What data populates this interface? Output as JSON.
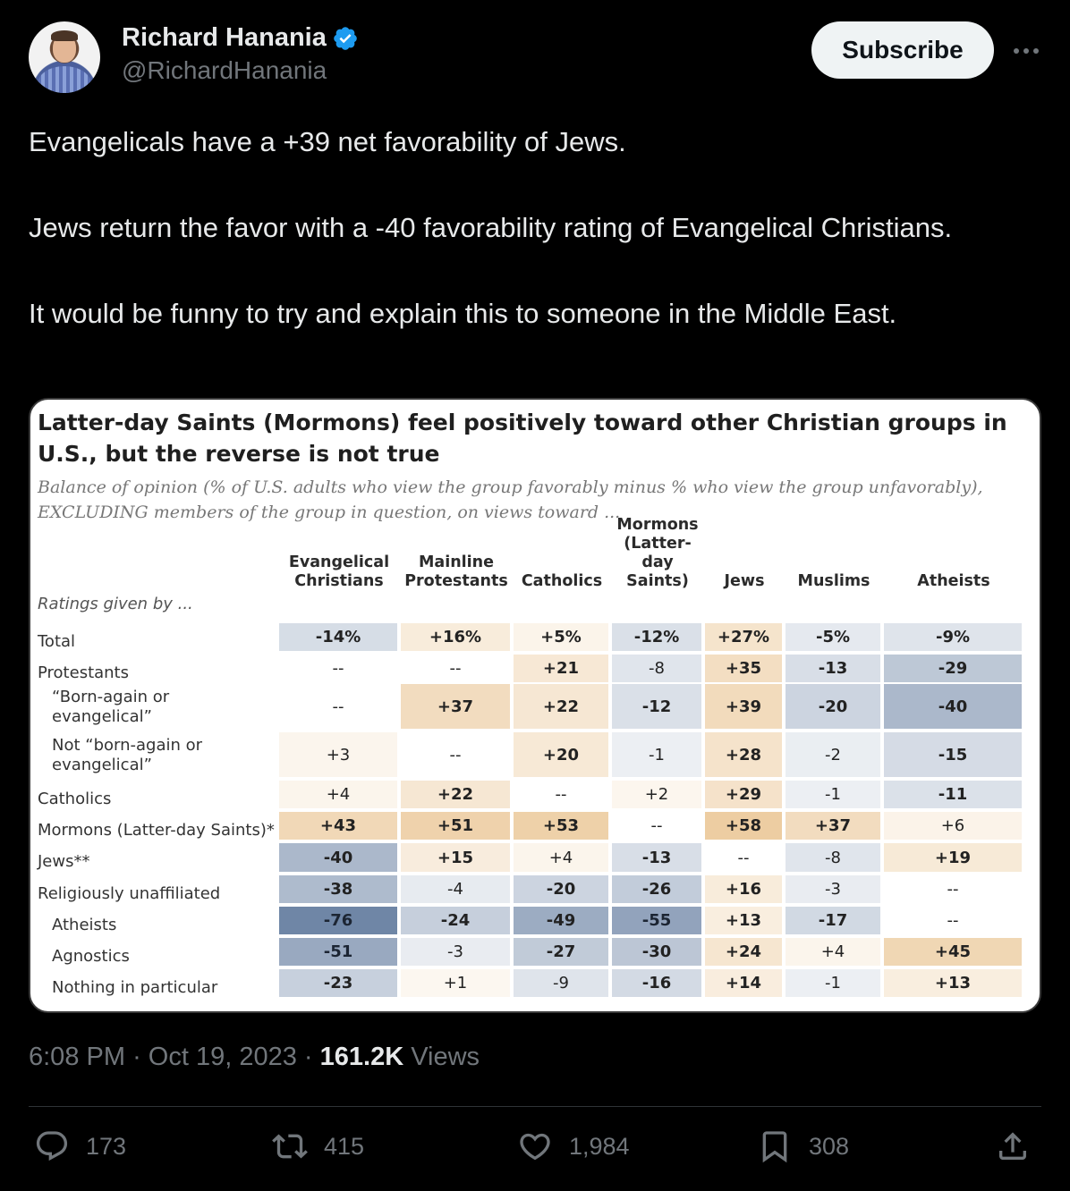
{
  "user": {
    "display_name": "Richard Hanania",
    "handle": "@RichardHanania",
    "subscribe_label": "Subscribe"
  },
  "tweet": {
    "text": "Evangelicals have a +39 net favorability of Jews.\n\nJews return the favor with a -40 favorability rating  of Evangelical Christians.\n\nIt would be funny to try and explain this to someone in the Middle East."
  },
  "chart": {
    "title": "Latter-day Saints (Mormons) feel positively toward other Christian groups in U.S., but the reverse is not true",
    "subtitle": "Balance of opinion (% of U.S. adults who view the group favorably minus % who view the group unfavorably), EXCLUDING members of the group in question, on views toward ...",
    "ratings_label": "Ratings given by ..."
  },
  "chart_data": {
    "type": "table",
    "columns": [
      "Evangelical Christians",
      "Mainline Protestants",
      "Catholics",
      "Mormons (Latter-day Saints)",
      "Jews",
      "Muslims",
      "Atheists"
    ],
    "rows": [
      {
        "label": "Total",
        "indent": false,
        "values": [
          "-14%",
          "+16%",
          "+5%",
          "-12%",
          "+27%",
          "-5%",
          "-9%"
        ],
        "numeric": [
          -14,
          16,
          5,
          -12,
          27,
          -5,
          -9
        ]
      },
      {
        "label": "Protestants",
        "indent": false,
        "values": [
          "--",
          "--",
          "+21",
          "-8",
          "+35",
          "-13",
          "-29"
        ],
        "numeric": [
          null,
          null,
          21,
          -8,
          35,
          -13,
          -29
        ]
      },
      {
        "label": "“Born-again or\nevangelical”",
        "indent": true,
        "values": [
          "--",
          "+37",
          "+22",
          "-12",
          "+39",
          "-20",
          "-40"
        ],
        "numeric": [
          null,
          37,
          22,
          -12,
          39,
          -20,
          -40
        ]
      },
      {
        "label": "Not “born-again or\nevangelical”",
        "indent": true,
        "values": [
          "+3",
          "--",
          "+20",
          "-1",
          "+28",
          "-2",
          "-15"
        ],
        "numeric": [
          3,
          null,
          20,
          -1,
          28,
          -2,
          -15
        ]
      },
      {
        "label": "Catholics",
        "indent": false,
        "values": [
          "+4",
          "+22",
          "--",
          "+2",
          "+29",
          "-1",
          "-11"
        ],
        "numeric": [
          4,
          22,
          null,
          2,
          29,
          -1,
          -11
        ]
      },
      {
        "label": "Mormons (Latter-day Saints)*",
        "indent": false,
        "values": [
          "+43",
          "+51",
          "+53",
          "--",
          "+58",
          "+37",
          "+6"
        ],
        "numeric": [
          43,
          51,
          53,
          null,
          58,
          37,
          6
        ]
      },
      {
        "label": "Jews**",
        "indent": false,
        "values": [
          "-40",
          "+15",
          "+4",
          "-13",
          "--",
          "-8",
          "+19"
        ],
        "numeric": [
          -40,
          15,
          4,
          -13,
          null,
          -8,
          19
        ]
      },
      {
        "label": "Religiously unaffiliated",
        "indent": false,
        "values": [
          "-38",
          "-4",
          "-20",
          "-26",
          "+16",
          "-3",
          "--"
        ],
        "numeric": [
          -38,
          -4,
          -20,
          -26,
          16,
          -3,
          null
        ]
      },
      {
        "label": "Atheists",
        "indent": true,
        "values": [
          "-76",
          "-24",
          "-49",
          "-55",
          "+13",
          "-17",
          "--"
        ],
        "numeric": [
          -76,
          -24,
          -49,
          -55,
          13,
          -17,
          null
        ]
      },
      {
        "label": "Agnostics",
        "indent": true,
        "values": [
          "-51",
          "-3",
          "-27",
          "-30",
          "+24",
          "+4",
          "+45"
        ],
        "numeric": [
          -51,
          -3,
          -27,
          -30,
          24,
          4,
          45
        ]
      },
      {
        "label": "Nothing in particular",
        "indent": true,
        "values": [
          "-23",
          "+1",
          "-9",
          "-16",
          "+14",
          "-1",
          "+13"
        ],
        "numeric": [
          -23,
          1,
          -9,
          -16,
          14,
          -1,
          13
        ]
      }
    ],
    "colors": {
      "positive": "#e8c08a",
      "negative": "#6f86a6",
      "neutral": "#ffffff"
    }
  },
  "meta": {
    "time": "6:08 PM",
    "date": "Oct 19, 2023",
    "views_count": "161.2K",
    "views_label": "Views"
  },
  "actions": {
    "replies": "173",
    "reposts": "415",
    "likes": "1,984",
    "bookmarks": "308"
  },
  "icons": [
    "verified-badge-icon",
    "more-icon",
    "reply-icon",
    "repost-icon",
    "like-icon",
    "bookmark-icon",
    "share-icon"
  ]
}
